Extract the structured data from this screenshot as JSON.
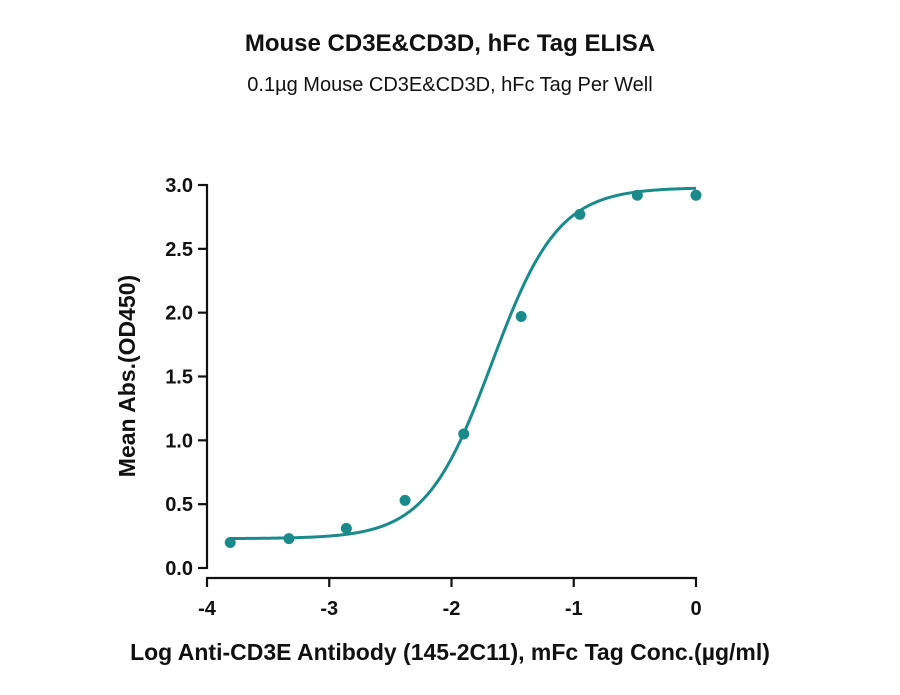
{
  "chart_data": {
    "type": "scatter",
    "title": "Mouse CD3E&CD3D, hFc Tag ELISA",
    "subtitle": "0.1µg Mouse CD3E&CD3D, hFc Tag Per Well",
    "xlabel": "Log Anti-CD3E Antibody (145-2C11), mFc Tag Conc.(µg/ml)",
    "ylabel": "Mean Abs.(OD450)",
    "xlim": [
      -4,
      0
    ],
    "ylim": [
      0.0,
      3.0
    ],
    "x_ticks": [
      "-4",
      "-3",
      "-2",
      "-1",
      "0"
    ],
    "x_tick_values": [
      -4,
      -3,
      -2,
      -1,
      0
    ],
    "y_ticks": [
      "0.0",
      "0.5",
      "1.0",
      "1.5",
      "2.0",
      "2.5",
      "3.0"
    ],
    "y_tick_values": [
      0.0,
      0.5,
      1.0,
      1.5,
      2.0,
      2.5,
      3.0
    ],
    "grid": false,
    "legend": "none",
    "series": [
      {
        "points": [
          {
            "x": -3.81,
            "y": 0.2
          },
          {
            "x": -3.33,
            "y": 0.23
          },
          {
            "x": -2.86,
            "y": 0.31
          },
          {
            "x": -2.38,
            "y": 0.53
          },
          {
            "x": -1.9,
            "y": 1.05
          },
          {
            "x": -1.43,
            "y": 1.97
          },
          {
            "x": -0.95,
            "y": 2.77
          },
          {
            "x": -0.48,
            "y": 2.92
          },
          {
            "x": 0.0,
            "y": 2.92
          }
        ],
        "fit": {
          "model": "4PL",
          "bottom": 0.23,
          "top": 2.98,
          "logEC50": -1.67,
          "hillslope": 1.6
        }
      }
    ],
    "color": "#1b8a8a"
  }
}
